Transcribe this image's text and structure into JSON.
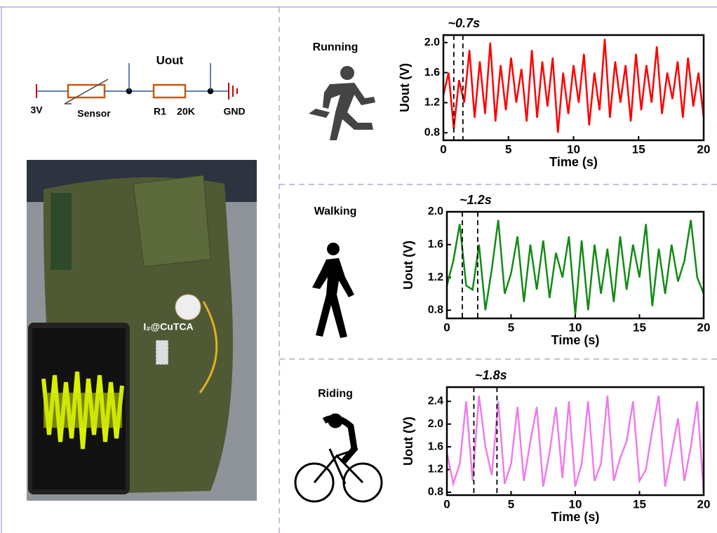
{
  "circuit": {
    "output": "Uout",
    "supply": "3V",
    "sensor": "Sensor",
    "resistor": "R1",
    "resistance": "20K",
    "ground": "GND"
  },
  "photo": {
    "label": "I₂@CuTCA"
  },
  "chart_data": [
    {
      "type": "line",
      "title": "Running",
      "annotation": "~0.7s",
      "vlines": [
        0.8,
        1.5
      ],
      "x_label": "Time (s)",
      "y_label": "Uout (V)",
      "color": "#ff0000",
      "x": [
        0,
        0.4,
        0.8,
        1.2,
        1.6,
        2,
        2.4,
        2.8,
        3.2,
        3.6,
        4,
        4.4,
        4.8,
        5.2,
        5.6,
        6,
        6.4,
        6.8,
        7.2,
        7.6,
        8,
        8.4,
        8.8,
        9.2,
        9.6,
        10,
        10.4,
        10.8,
        11.2,
        11.6,
        12,
        12.4,
        12.8,
        13.2,
        13.6,
        14,
        14.4,
        14.8,
        15.2,
        15.6,
        16,
        16.4,
        16.8,
        17.2,
        17.6,
        18,
        18.4,
        18.8,
        19.2,
        19.6,
        20
      ],
      "values": [
        1.3,
        1.6,
        0.85,
        1.5,
        1.2,
        1.9,
        1.0,
        1.75,
        1.05,
        2.0,
        0.95,
        1.7,
        1.1,
        1.8,
        1.2,
        1.65,
        0.95,
        1.9,
        1.0,
        1.75,
        1.15,
        1.8,
        0.8,
        1.6,
        1.05,
        1.7,
        1.2,
        1.85,
        0.9,
        1.6,
        1.1,
        2.05,
        1.0,
        1.75,
        1.2,
        1.7,
        0.95,
        1.85,
        1.1,
        1.7,
        1.2,
        1.95,
        1.05,
        1.6,
        1.25,
        1.75,
        1.0,
        1.8,
        1.15,
        1.6,
        1.0
      ],
      "xlim": [
        0,
        20
      ],
      "xticks": [
        0,
        5,
        10,
        15,
        20
      ],
      "ylim": [
        0.7,
        2.1
      ],
      "yticks": [
        0.8,
        1.2,
        1.6,
        {
          "value": 2,
          "label": "2.0"
        }
      ]
    },
    {
      "type": "line",
      "title": "Walking",
      "annotation": "~1.2s",
      "vlines": [
        1.2,
        2.4
      ],
      "x_label": "Time (s)",
      "y_label": "Uout (V)",
      "color": "#138a13",
      "x": [
        0,
        0.5,
        1,
        1.5,
        2,
        2.5,
        3,
        3.5,
        4,
        4.5,
        5,
        5.5,
        6,
        6.5,
        7,
        7.5,
        8,
        8.5,
        9,
        9.5,
        10,
        10.5,
        11,
        11.5,
        12,
        12.5,
        13,
        13.5,
        14,
        14.5,
        15,
        15.5,
        16,
        16.5,
        17,
        17.5,
        18,
        18.5,
        19,
        19.5,
        20
      ],
      "values": [
        1.1,
        1.4,
        1.85,
        1.1,
        1.05,
        1.6,
        0.8,
        1.3,
        1.9,
        1.0,
        1.25,
        1.7,
        0.9,
        1.6,
        1.05,
        1.65,
        0.95,
        1.5,
        1.2,
        1.7,
        0.75,
        1.65,
        0.8,
        1.6,
        1.0,
        1.55,
        0.9,
        1.7,
        1.05,
        1.6,
        1.2,
        1.85,
        0.85,
        1.55,
        1.0,
        1.6,
        1.15,
        1.4,
        1.9,
        1.2,
        1.0
      ],
      "xlim": [
        0,
        20
      ],
      "xticks": [
        0,
        5,
        10,
        15,
        20
      ],
      "ylim": [
        0.7,
        2.0
      ],
      "yticks": [
        0.8,
        1.2,
        1.6,
        {
          "value": 2,
          "label": "2.0"
        }
      ]
    },
    {
      "type": "line",
      "title": "Riding",
      "annotation": "~1.8s",
      "vlines": [
        2.1,
        3.9
      ],
      "x_label": "Time (s)",
      "y_label": "Uout (V)",
      "color": "#ee7bea",
      "x": [
        0,
        0.5,
        1,
        1.5,
        2,
        2.5,
        3,
        3.5,
        4,
        4.5,
        5,
        5.5,
        6,
        6.5,
        7,
        7.5,
        8,
        8.5,
        9,
        9.5,
        10,
        10.5,
        11,
        11.5,
        12,
        12.5,
        13,
        13.5,
        14,
        14.5,
        15,
        15.5,
        16,
        16.5,
        17,
        17.5,
        18,
        18.5,
        19,
        19.5,
        20
      ],
      "values": [
        1.5,
        0.95,
        1.3,
        2.4,
        1.0,
        2.5,
        1.6,
        1.1,
        2.4,
        0.95,
        1.3,
        2.3,
        1.0,
        1.7,
        2.3,
        0.9,
        1.5,
        2.3,
        1.05,
        2.4,
        0.9,
        1.3,
        2.4,
        1.0,
        1.3,
        2.5,
        1.0,
        1.4,
        1.7,
        2.4,
        1.0,
        1.2,
        1.9,
        2.5,
        0.9,
        1.5,
        2.1,
        1.0,
        1.6,
        2.4,
        0.8
      ],
      "xlim": [
        0,
        20
      ],
      "xticks": [
        0,
        5,
        10,
        15,
        20
      ],
      "ylim": [
        0.75,
        2.65
      ],
      "yticks": [
        0.8,
        1.2,
        1.6,
        {
          "value": 2,
          "label": "2.0"
        },
        2.4
      ]
    }
  ]
}
